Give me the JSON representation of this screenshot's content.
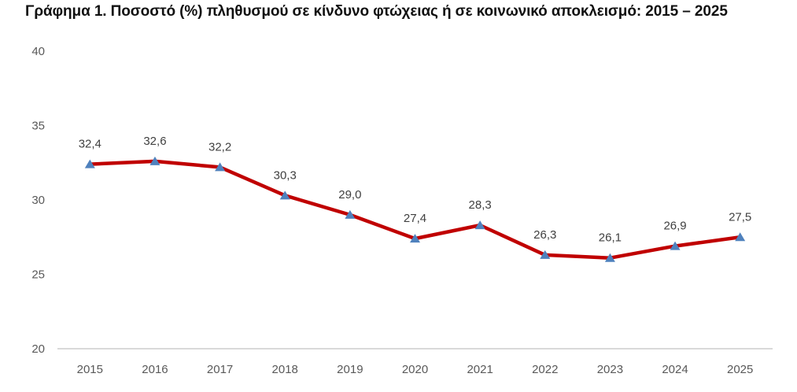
{
  "chart_data": {
    "type": "line",
    "title": "Γράφημα 1. Ποσοστό (%) πληθυσμού σε κίνδυνο φτώχειας ή σε κοινωνικό αποκλεισμό: 2015 – 2025",
    "xlabel": "",
    "ylabel": "",
    "categories": [
      "2015",
      "2016",
      "2017",
      "2018",
      "2019",
      "2020",
      "2021",
      "2022",
      "2023",
      "2024",
      "2025"
    ],
    "series": [
      {
        "name": "Ποσοστό (%) πληθυσμού σε κίνδυνο φτώχειας ή σε κοινωνικό αποκλεισμό",
        "values": [
          32.4,
          32.6,
          32.2,
          30.3,
          29.0,
          27.4,
          28.3,
          26.3,
          26.1,
          26.9,
          27.5
        ],
        "data_labels": [
          "32,4",
          "32,6",
          "32,2",
          "30,3",
          "29,0",
          "27,4",
          "28,3",
          "26,3",
          "26,1",
          "26,9",
          "27,5"
        ],
        "line_color": "#C00000",
        "marker": "triangle",
        "marker_color": "#4F81BD"
      }
    ],
    "ylim": [
      20,
      40
    ],
    "yticks": [
      20,
      25,
      30,
      35,
      40
    ],
    "ytick_labels": [
      "20",
      "25",
      "30",
      "35",
      "40"
    ],
    "grid": false,
    "legend": "none",
    "axis_color": "#D9D9D9",
    "tick_label_color": "#595959"
  }
}
